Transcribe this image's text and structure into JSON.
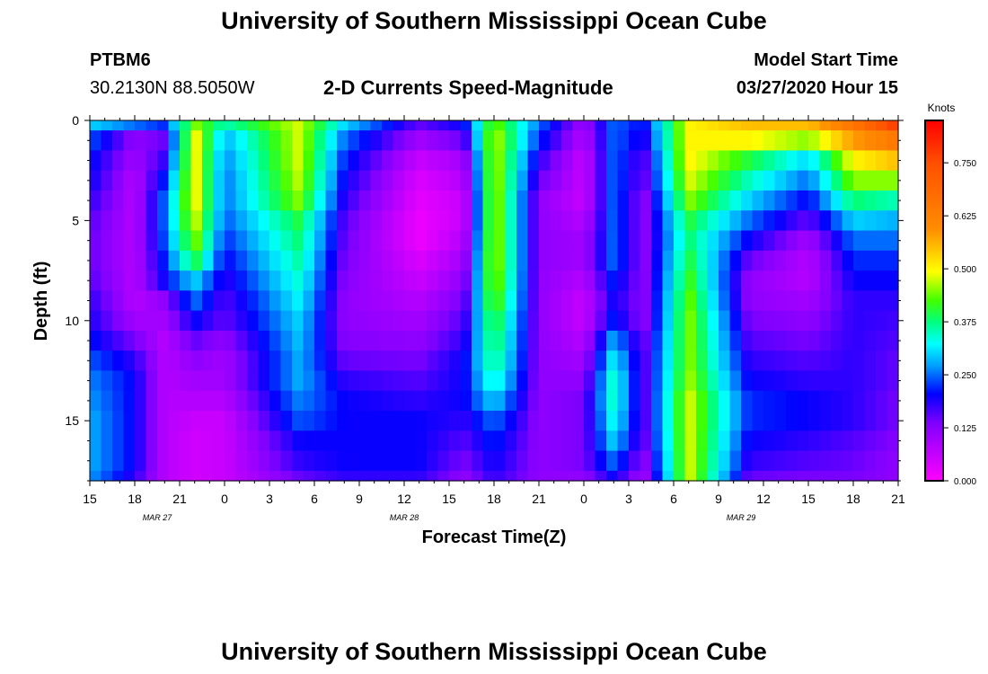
{
  "header": {
    "title": "University of Southern Mississippi Ocean Cube",
    "station": "PTBM6",
    "coords": "30.2130N 88.5050W",
    "plot_title": "2-D Currents Speed-Magnitude",
    "model_start_label": "Model Start Time",
    "model_start_value": "03/27/2020 Hour 15"
  },
  "footer": {
    "title": "University of Southern Mississippi Ocean Cube"
  },
  "chart_data": {
    "type": "heatmap",
    "title": "2-D Currents Speed-Magnitude",
    "xlabel": "Forecast Time(Z)",
    "ylabel": "Depth (ft)",
    "x_hours": [
      0,
      54
    ],
    "ylim": [
      0,
      18
    ],
    "xtick_labels": [
      "15",
      "18",
      "21",
      "0",
      "3",
      "6",
      "9",
      "12",
      "15",
      "18",
      "21",
      "0",
      "3",
      "6",
      "9",
      "12",
      "15",
      "18",
      "21"
    ],
    "ytick_labels": [
      "0",
      "5",
      "10",
      "15"
    ],
    "date_labels": [
      {
        "text": "MAR 27",
        "hour": 4.5
      },
      {
        "text": "MAR 28",
        "hour": 21
      },
      {
        "text": "MAR 29",
        "hour": 43.5
      }
    ],
    "colorbar": {
      "label": "Knots",
      "min": 0.0,
      "max": 0.85,
      "ticks": [
        "0.000",
        "0.125",
        "0.250",
        "0.375",
        "0.500",
        "0.625",
        "0.750"
      ],
      "tick_values": [
        0.0,
        0.125,
        0.25,
        0.375,
        0.5,
        0.625,
        0.75
      ]
    },
    "grid_depths_ft": [
      0,
      1,
      2,
      3,
      4,
      5,
      6,
      7,
      8,
      9,
      10,
      11,
      12,
      13,
      14,
      15,
      16,
      17,
      18
    ],
    "columns": [
      {
        "hour": 0,
        "speed": [
          0.3,
          0.24,
          0.21,
          0.2,
          0.18,
          0.16,
          0.15,
          0.15,
          0.16,
          0.18,
          0.19,
          0.21,
          0.24,
          0.26,
          0.27,
          0.28,
          0.28,
          0.28,
          0.27
        ]
      },
      {
        "hour": 3,
        "speed": [
          0.25,
          0.12,
          0.1,
          0.08,
          0.08,
          0.08,
          0.08,
          0.08,
          0.08,
          0.08,
          0.1,
          0.14,
          0.18,
          0.2,
          0.2,
          0.2,
          0.2,
          0.2,
          0.18
        ]
      },
      {
        "hour": 5,
        "speed": [
          0.22,
          0.15,
          0.18,
          0.22,
          0.25,
          0.25,
          0.24,
          0.22,
          0.2,
          0.12,
          0.1,
          0.08,
          0.08,
          0.08,
          0.08,
          0.08,
          0.08,
          0.08,
          0.08
        ]
      },
      {
        "hour": 7,
        "speed": [
          0.45,
          0.5,
          0.5,
          0.5,
          0.5,
          0.48,
          0.45,
          0.4,
          0.3,
          0.25,
          0.2,
          0.15,
          0.12,
          0.1,
          0.08,
          0.06,
          0.05,
          0.05,
          0.05
        ]
      },
      {
        "hour": 9,
        "speed": [
          0.35,
          0.28,
          0.26,
          0.25,
          0.25,
          0.24,
          0.22,
          0.2,
          0.18,
          0.16,
          0.15,
          0.12,
          0.1,
          0.1,
          0.08,
          0.06,
          0.06,
          0.06,
          0.06
        ]
      },
      {
        "hour": 14,
        "speed": [
          0.48,
          0.48,
          0.48,
          0.47,
          0.45,
          0.4,
          0.38,
          0.36,
          0.34,
          0.32,
          0.3,
          0.29,
          0.28,
          0.28,
          0.26,
          0.24,
          0.2,
          0.18,
          0.15
        ]
      },
      {
        "hour": 17,
        "speed": [
          0.3,
          0.25,
          0.22,
          0.2,
          0.18,
          0.16,
          0.15,
          0.14,
          0.13,
          0.12,
          0.12,
          0.13,
          0.15,
          0.18,
          0.2,
          0.2,
          0.2,
          0.2,
          0.18
        ]
      },
      {
        "hour": 22,
        "speed": [
          0.15,
          0.1,
          0.06,
          0.04,
          0.03,
          0.02,
          0.02,
          0.04,
          0.06,
          0.08,
          0.1,
          0.12,
          0.14,
          0.16,
          0.18,
          0.2,
          0.2,
          0.2,
          0.18
        ]
      },
      {
        "hour": 25,
        "speed": [
          0.2,
          0.15,
          0.1,
          0.08,
          0.06,
          0.06,
          0.08,
          0.1,
          0.12,
          0.14,
          0.16,
          0.18,
          0.2,
          0.2,
          0.2,
          0.18,
          0.16,
          0.14,
          0.12
        ]
      },
      {
        "hour": 27,
        "speed": [
          0.45,
          0.48,
          0.48,
          0.48,
          0.48,
          0.48,
          0.48,
          0.48,
          0.47,
          0.45,
          0.42,
          0.4,
          0.38,
          0.35,
          0.3,
          0.25,
          0.22,
          0.2,
          0.18
        ]
      },
      {
        "hour": 30,
        "speed": [
          0.25,
          0.22,
          0.18,
          0.15,
          0.12,
          0.12,
          0.12,
          0.12,
          0.12,
          0.12,
          0.12,
          0.12,
          0.12,
          0.12,
          0.12,
          0.12,
          0.12,
          0.12,
          0.12
        ]
      },
      {
        "hour": 33,
        "speed": [
          0.1,
          0.08,
          0.06,
          0.06,
          0.06,
          0.08,
          0.1,
          0.1,
          0.08,
          0.06,
          0.06,
          0.08,
          0.1,
          0.12,
          0.14,
          0.14,
          0.14,
          0.14,
          0.12
        ]
      },
      {
        "hour": 35,
        "speed": [
          0.25,
          0.25,
          0.25,
          0.25,
          0.25,
          0.25,
          0.25,
          0.25,
          0.22,
          0.2,
          0.22,
          0.28,
          0.32,
          0.35,
          0.35,
          0.33,
          0.3,
          0.25,
          0.2
        ]
      },
      {
        "hour": 37,
        "speed": [
          0.2,
          0.18,
          0.15,
          0.14,
          0.12,
          0.12,
          0.12,
          0.12,
          0.12,
          0.12,
          0.12,
          0.14,
          0.15,
          0.15,
          0.15,
          0.15,
          0.14,
          0.12,
          0.1
        ]
      },
      {
        "hour": 40,
        "speed": [
          0.5,
          0.5,
          0.5,
          0.48,
          0.45,
          0.4,
          0.38,
          0.4,
          0.42,
          0.44,
          0.45,
          0.45,
          0.45,
          0.46,
          0.48,
          0.48,
          0.48,
          0.48,
          0.48
        ]
      },
      {
        "hour": 44,
        "speed": [
          0.55,
          0.5,
          0.4,
          0.35,
          0.3,
          0.25,
          0.2,
          0.15,
          0.12,
          0.12,
          0.14,
          0.16,
          0.18,
          0.2,
          0.22,
          0.22,
          0.2,
          0.18,
          0.15
        ]
      },
      {
        "hour": 48,
        "speed": [
          0.55,
          0.45,
          0.3,
          0.25,
          0.2,
          0.15,
          0.1,
          0.08,
          0.08,
          0.1,
          0.12,
          0.14,
          0.16,
          0.18,
          0.2,
          0.2,
          0.18,
          0.16,
          0.14
        ]
      },
      {
        "hour": 51,
        "speed": [
          0.65,
          0.58,
          0.5,
          0.45,
          0.38,
          0.3,
          0.25,
          0.22,
          0.2,
          0.18,
          0.18,
          0.18,
          0.18,
          0.18,
          0.18,
          0.18,
          0.16,
          0.15,
          0.14
        ]
      },
      {
        "hour": 54,
        "speed": [
          0.78,
          0.65,
          0.55,
          0.45,
          0.35,
          0.28,
          0.25,
          0.22,
          0.2,
          0.18,
          0.17,
          0.16,
          0.15,
          0.15,
          0.14,
          0.14,
          0.13,
          0.12,
          0.12
        ]
      }
    ]
  }
}
